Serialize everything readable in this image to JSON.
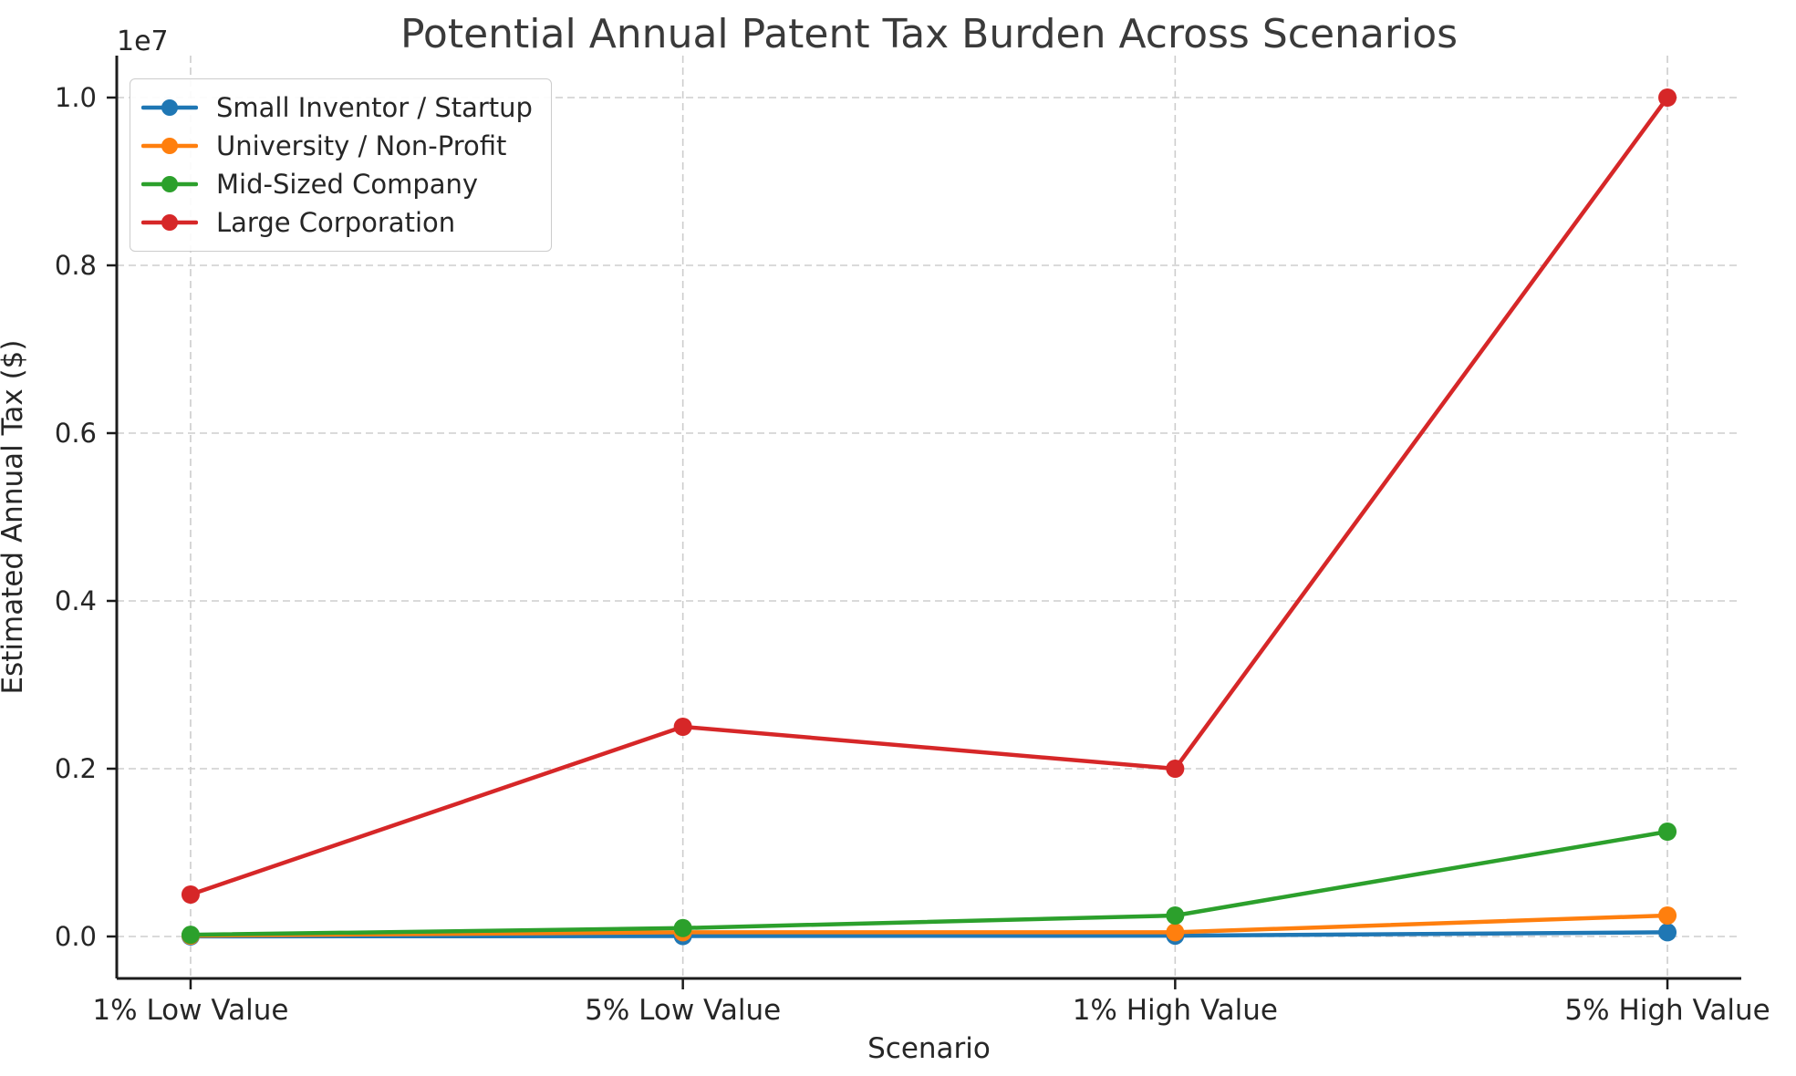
{
  "chart_data": {
    "type": "line",
    "title": "Potential Annual Patent Tax Burden Across Scenarios",
    "xlabel": "Scenario",
    "ylabel": "Estimated Annual Tax ($)",
    "y_offset_label": "1e7",
    "categories": [
      "1% Low Value",
      "5% Low Value",
      "1% High Value",
      "5% High Value"
    ],
    "series": [
      {
        "name": "Small Inventor / Startup",
        "color": "#1f77b4",
        "values": [
          1000,
          5000,
          10000,
          50000
        ]
      },
      {
        "name": "University / Non-Profit",
        "color": "#ff7f0e",
        "values": [
          10000,
          50000,
          50000,
          250000
        ]
      },
      {
        "name": "Mid-Sized Company",
        "color": "#2ca02c",
        "values": [
          20000,
          100000,
          250000,
          1250000
        ]
      },
      {
        "name": "Large Corporation",
        "color": "#d62728",
        "values": [
          500000,
          2500000,
          2000000,
          10000000
        ]
      }
    ],
    "ylim": [
      -500000,
      10500000
    ],
    "yticks": [
      0,
      2000000,
      4000000,
      6000000,
      8000000,
      10000000
    ],
    "ytick_labels": [
      "0.0",
      "0.2",
      "0.4",
      "0.6",
      "0.8",
      "1.0"
    ],
    "grid": true,
    "grid_style": "dashed",
    "legend_position": "upper left",
    "axis_color": "#1c1c1c",
    "grid_color": "#cdcdcd",
    "text_color": "#262626"
  }
}
